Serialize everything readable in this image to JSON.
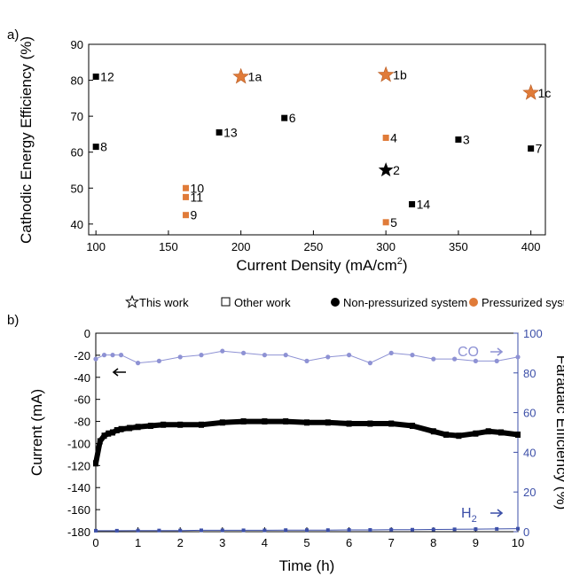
{
  "panel_a": {
    "label": "a)",
    "xlabel": "Current Density (mA/cm",
    "xlabel_sup": "2",
    "xlabel_end": ")",
    "ylabel": "Cathodic Energy Efficiency (%)",
    "xticks": [
      "100",
      "150",
      "200",
      "250",
      "300",
      "350",
      "400"
    ],
    "yticks": [
      "40",
      "50",
      "60",
      "70",
      "80",
      "90"
    ]
  },
  "legend": {
    "this_work": "This work",
    "other_work": "Other work",
    "non_pressurized": "Non-pressurized system",
    "pressurized": "Pressurized system"
  },
  "panel_b": {
    "label": "b)",
    "xlabel": "Time (h)",
    "ylabel_left": "Current (mA)",
    "ylabel_right": "Faradaic Efficiency (%)",
    "co_label": "CO",
    "h2_label": "H",
    "h2_sub": "2",
    "xticks": [
      "0",
      "1",
      "2",
      "3",
      "4",
      "5",
      "6",
      "7",
      "8",
      "9",
      "10"
    ],
    "yticks_left": [
      "0",
      "-20",
      "-40",
      "-60",
      "-80",
      "-100",
      "-120",
      "-140",
      "-160",
      "-180"
    ],
    "yticks_right": [
      "0",
      "20",
      "40",
      "60",
      "80",
      "100"
    ]
  },
  "colors": {
    "orange": "#E07B39",
    "black": "#000000",
    "fe_blue": "#3C4FA8",
    "co_blue": "#8E92D4"
  },
  "chart_data": [
    {
      "type": "scatter",
      "xlabel": "Current Density (mA/cm2)",
      "ylabel": "Cathodic Energy Efficiency (%)",
      "xlim": [
        95,
        410
      ],
      "ylim": [
        37,
        90
      ],
      "legend_position": "bottom",
      "points": [
        {
          "label": "12",
          "x": 100,
          "y": 81,
          "marker": "square",
          "pressurized": false,
          "this_work": false
        },
        {
          "label": "8",
          "x": 100,
          "y": 61.5,
          "marker": "square",
          "pressurized": false,
          "this_work": false
        },
        {
          "label": "1a",
          "x": 200,
          "y": 81,
          "marker": "star",
          "pressurized": true,
          "this_work": false
        },
        {
          "label": "1b",
          "x": 300,
          "y": 81.5,
          "marker": "star",
          "pressurized": true,
          "this_work": false
        },
        {
          "label": "1c",
          "x": 400,
          "y": 76.5,
          "marker": "star",
          "pressurized": true,
          "this_work": false
        },
        {
          "label": "6",
          "x": 230,
          "y": 69.5,
          "marker": "square",
          "pressurized": false,
          "this_work": false
        },
        {
          "label": "13",
          "x": 185,
          "y": 65.5,
          "marker": "square",
          "pressurized": false,
          "this_work": false
        },
        {
          "label": "4",
          "x": 300,
          "y": 64,
          "marker": "square",
          "pressurized": true,
          "this_work": false
        },
        {
          "label": "3",
          "x": 350,
          "y": 63.5,
          "marker": "square",
          "pressurized": false,
          "this_work": false
        },
        {
          "label": "7",
          "x": 400,
          "y": 61,
          "marker": "square",
          "pressurized": false,
          "this_work": false
        },
        {
          "label": "2",
          "x": 300,
          "y": 55,
          "marker": "star",
          "pressurized": false,
          "this_work": true
        },
        {
          "label": "10",
          "x": 162,
          "y": 50,
          "marker": "square",
          "pressurized": true,
          "this_work": false
        },
        {
          "label": "11",
          "x": 162,
          "y": 47.5,
          "marker": "square",
          "pressurized": true,
          "this_work": false
        },
        {
          "label": "9",
          "x": 162,
          "y": 42.5,
          "marker": "square",
          "pressurized": true,
          "this_work": false
        },
        {
          "label": "14",
          "x": 318,
          "y": 45.5,
          "marker": "square",
          "pressurized": false,
          "this_work": false
        },
        {
          "label": "5",
          "x": 300,
          "y": 40.5,
          "marker": "square",
          "pressurized": true,
          "this_work": false
        }
      ]
    },
    {
      "type": "line",
      "xlabel": "Time (h)",
      "ylabel": "Current (mA)",
      "y2label": "Faradaic Efficiency (%)",
      "xlim": [
        0,
        10
      ],
      "ylim": [
        -180,
        0
      ],
      "y2lim": [
        0,
        100
      ],
      "grid": false,
      "series": [
        {
          "name": "Current",
          "axis": "left",
          "x": [
            0,
            0.1,
            0.2,
            0.3,
            0.4,
            0.5,
            0.6,
            0.8,
            1.0,
            1.3,
            1.6,
            2.0,
            2.5,
            3.0,
            3.5,
            4.0,
            4.5,
            5.0,
            5.5,
            6.0,
            6.5,
            7.0,
            7.5,
            8.0,
            8.3,
            8.6,
            9.0,
            9.3,
            9.6,
            10.0
          ],
          "y": [
            -118,
            -98,
            -93,
            -91,
            -90,
            -88,
            -87,
            -86,
            -85,
            -84,
            -83,
            -83,
            -83,
            -81,
            -80,
            -80,
            -80,
            -81,
            -81,
            -82,
            -82,
            -82,
            -84,
            -89,
            -92,
            -93,
            -91,
            -89,
            -90,
            -92
          ]
        },
        {
          "name": "CO",
          "axis": "right",
          "x": [
            0,
            0.2,
            0.4,
            0.6,
            1.0,
            1.5,
            2.0,
            2.5,
            3.0,
            3.5,
            4.0,
            4.5,
            5.0,
            5.5,
            6.0,
            6.5,
            7.0,
            7.5,
            8.0,
            8.5,
            9.0,
            9.5,
            10.0
          ],
          "y": [
            87,
            89,
            89,
            89,
            85,
            86,
            88,
            89,
            91,
            90,
            89,
            89,
            86,
            88,
            89,
            85,
            90,
            89,
            87,
            87,
            86,
            86,
            88
          ]
        },
        {
          "name": "H2",
          "axis": "right",
          "x": [
            0,
            0.5,
            1,
            1.5,
            2,
            2.5,
            3,
            3.5,
            4,
            4.5,
            5,
            5.5,
            6,
            6.5,
            7,
            7.5,
            8,
            8.5,
            9,
            9.5,
            10
          ],
          "y": [
            0.5,
            0.5,
            0.6,
            0.6,
            0.6,
            0.7,
            0.7,
            0.7,
            0.7,
            0.8,
            0.8,
            0.8,
            0.9,
            0.9,
            1.0,
            1.0,
            1.1,
            1.2,
            1.3,
            1.4,
            1.5
          ]
        }
      ]
    }
  ]
}
